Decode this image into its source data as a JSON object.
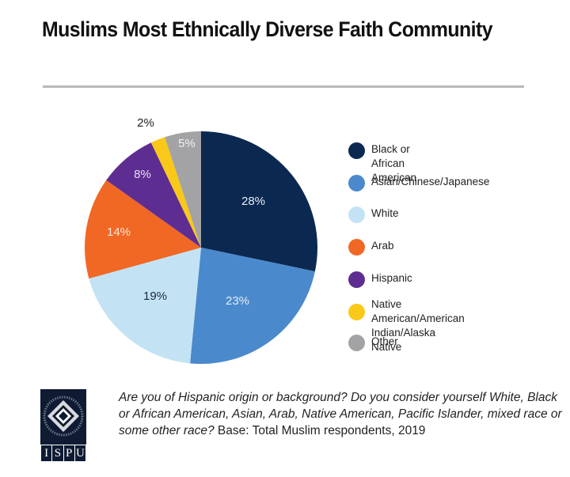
{
  "header": {
    "title": "Muslims Most Ethnically Diverse Faith Community"
  },
  "chart_data": {
    "type": "pie",
    "title": "Muslims Most Ethnically Diverse Faith Community",
    "start_angle": "12 o'clock",
    "direction": "clockwise",
    "categories": [
      "Black or African American",
      "Asian/Chinese/Japanese",
      "White",
      "Arab",
      "Hispanic",
      "Native American/American Indian/Alaska Native",
      "Other"
    ],
    "values": [
      28,
      23,
      19,
      14,
      8,
      2,
      5
    ],
    "unit": "%",
    "labels": [
      "28%",
      "23%",
      "19%",
      "14%",
      "8%",
      "2%",
      "5%"
    ],
    "colors": [
      "#0b2850",
      "#4a89cc",
      "#c3e3f5",
      "#f06824",
      "#5e2d91",
      "#f9c818",
      "#a3a3a5"
    ],
    "label_colors": [
      "#e6ecf4",
      "#e6ecf4",
      "#1b2a3a",
      "#fde6d6",
      "#e8def2",
      "#222222",
      "#f2f2f2"
    ],
    "legend_position": "right"
  },
  "legend": {
    "items": [
      {
        "label": "Black or African American",
        "color": "#0b2850"
      },
      {
        "label": "Asian/Chinese/Japanese",
        "color": "#4a89cc"
      },
      {
        "label": "White",
        "color": "#c3e3f5"
      },
      {
        "label": "Arab",
        "color": "#f06824"
      },
      {
        "label": "Hispanic",
        "color": "#5e2d91"
      },
      {
        "label": "Native American/American\nIndian/Alaska Native",
        "color": "#f9c818"
      },
      {
        "label": "Other",
        "color": "#a3a3a5"
      }
    ]
  },
  "footer": {
    "logo_letters": [
      "I",
      "S",
      "P",
      "U"
    ],
    "question": "Are you of Hispanic origin or background? Do you consider yourself White, Black or African American, Asian, Arab, Native American, Pacific Islander, mixed race or some other race?",
    "base": " Base: Total Muslim respondents, 2019"
  }
}
